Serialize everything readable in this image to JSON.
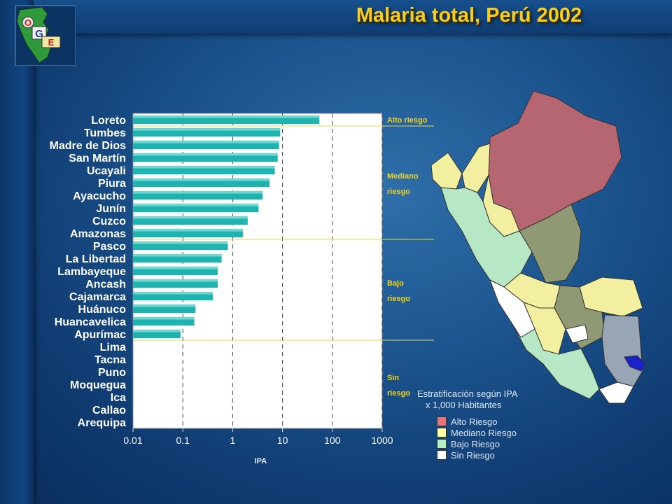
{
  "title": "Malaria total, Perú 2002",
  "logo": {
    "letters": [
      "O",
      "G",
      "E"
    ]
  },
  "colors": {
    "bar": "#1fb3b0",
    "bar_highlight": "#8fe6e2",
    "plot_bg": "#ffffff",
    "risk_label": "#f5d21a",
    "alto": "#b56670",
    "mediano": "#f2f0a0",
    "bajo": "#b6e8c6",
    "sin": "#ffffff"
  },
  "chart_data": {
    "type": "bar",
    "orientation": "horizontal",
    "xscale": "log",
    "xlim": [
      0.01,
      1000
    ],
    "xticks": [
      "0.01",
      "0.1",
      "1",
      "10",
      "100",
      "1000"
    ],
    "xlabel": "IPA",
    "grid": "vertical dashed",
    "categories": [
      "Loreto",
      "Tumbes",
      "Madre de Dios",
      "San Martín",
      "Ucayali",
      "Piura",
      "Ayacucho",
      "Junín",
      "Cuzco",
      "Amazonas",
      "Pasco",
      "La Libertad",
      "Lambayeque",
      "Ancash",
      "Cajamarca",
      "Huánuco",
      "Huancavelica",
      "Apurímac",
      "Lima",
      "Tacna",
      "Puno",
      "Moquegua",
      "Ica",
      "Callao",
      "Arequipa"
    ],
    "values": [
      55,
      9,
      8.5,
      8,
      7,
      5.5,
      4,
      3.3,
      2,
      1.6,
      0.8,
      0.6,
      0.5,
      0.5,
      0.4,
      0.18,
      0.17,
      0.09,
      null,
      null,
      null,
      null,
      null,
      null,
      null
    ],
    "risk_groups": [
      {
        "label": "Alto riesgo",
        "count": 1
      },
      {
        "label": "Mediano riesgo",
        "count": 9
      },
      {
        "label": "Bajo riesgo",
        "count": 8
      },
      {
        "label": "Sin riesgo",
        "count": 7
      }
    ]
  },
  "map": {
    "legend_title": "Estratificación según IPA",
    "legend_subtitle": "x 1,000 Habitantes",
    "legend_items": [
      {
        "label": "Alto Riesgo",
        "color": "#e8747e"
      },
      {
        "label": "Mediano Riesgo",
        "color": "#ffffa0"
      },
      {
        "label": "Bajo Riesgo",
        "color": "#b6efc4"
      },
      {
        "label": "Sin Riesgo",
        "color": "#ffffff"
      }
    ]
  }
}
